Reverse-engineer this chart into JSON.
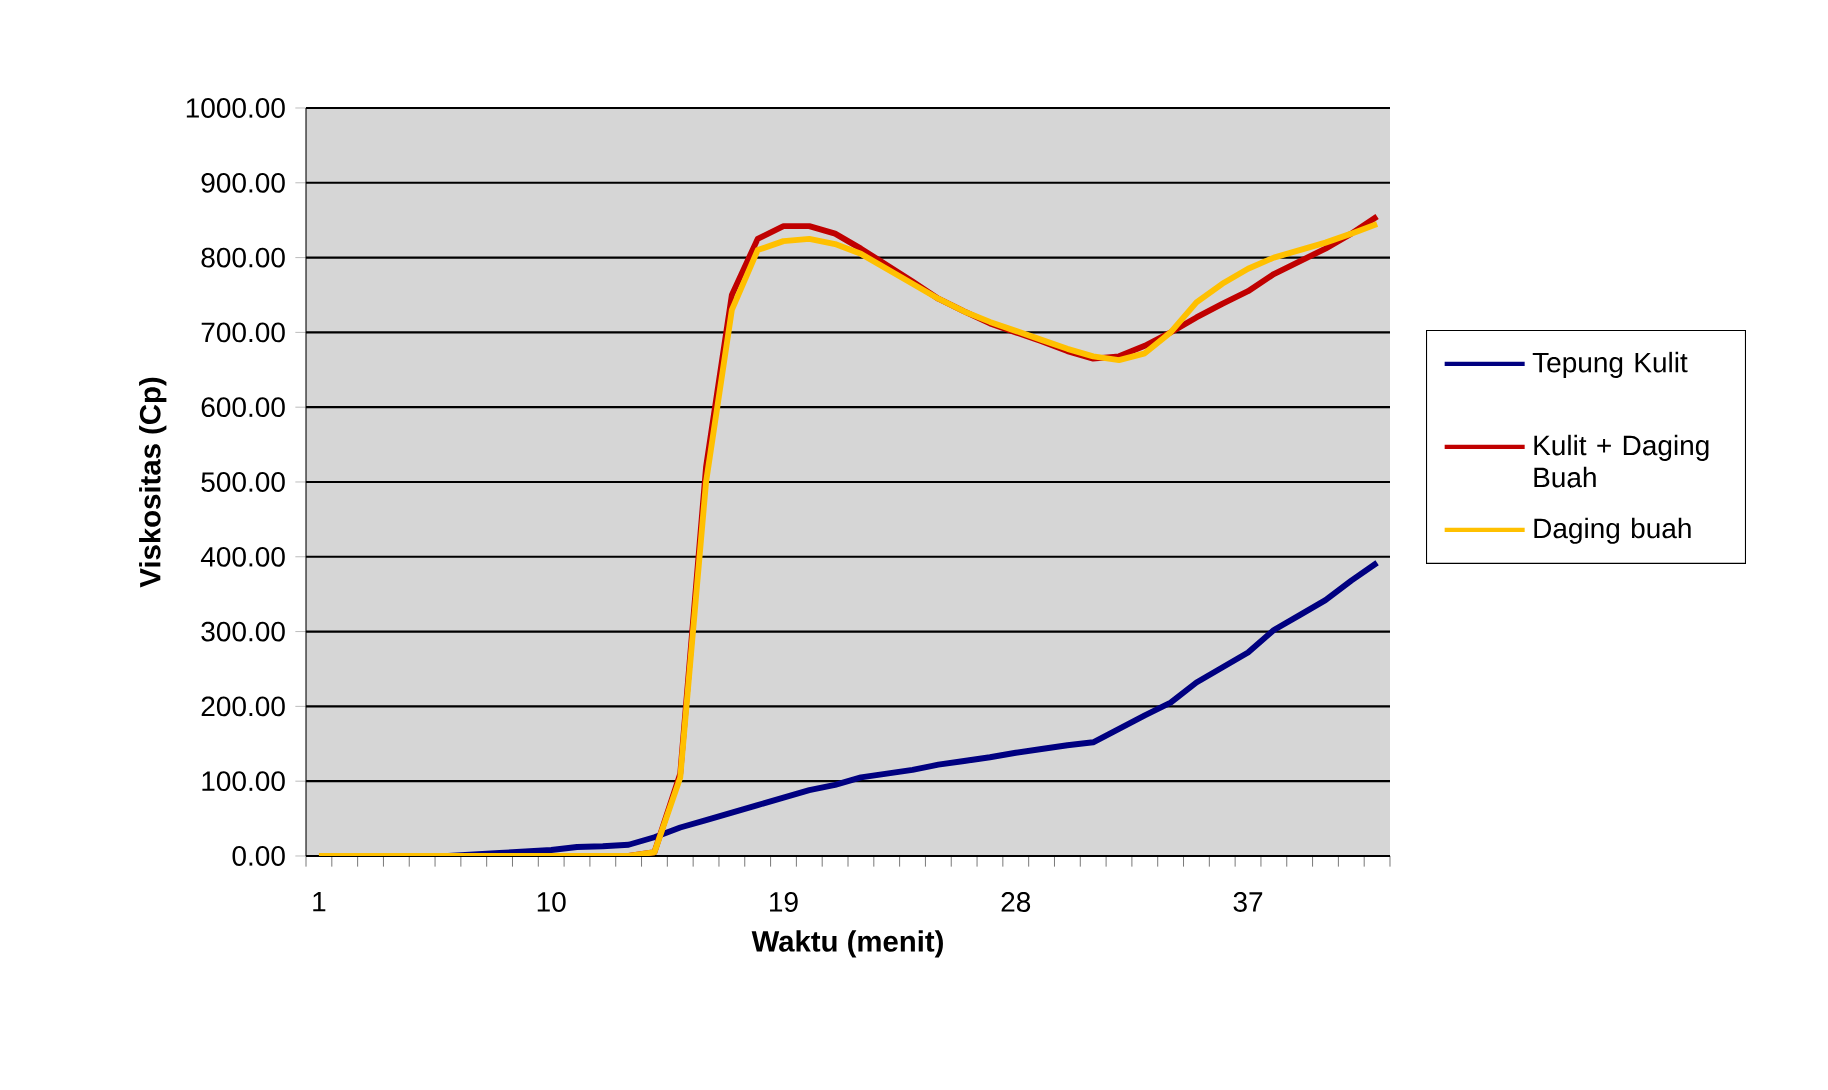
{
  "chart_data": {
    "type": "line",
    "xlabel": "Waktu (menit)",
    "ylabel": "Viskositas (Cp)",
    "categories": [
      "1",
      null,
      null,
      null,
      null,
      null,
      null,
      null,
      null,
      "10",
      null,
      null,
      null,
      null,
      null,
      null,
      null,
      null,
      "19",
      null,
      null,
      null,
      null,
      null,
      null,
      null,
      null,
      "28",
      null,
      null,
      null,
      null,
      null,
      null,
      null,
      null,
      "37",
      null,
      null,
      null,
      null,
      null
    ],
    "series": [
      {
        "name": "Tepung Kulit",
        "color": "#000080",
        "values": [
          null,
          null,
          null,
          null,
          0,
          0,
          2,
          4,
          6,
          8,
          12,
          13,
          15,
          25,
          38,
          48,
          58,
          68,
          78,
          88,
          95,
          105,
          110,
          115,
          122,
          127,
          132,
          138,
          143,
          148,
          152,
          170,
          188,
          205,
          232,
          252,
          272,
          302,
          322,
          342,
          368,
          392
        ]
      },
      {
        "name": "Kulit + Daging Buah",
        "color": "#c00000",
        "values": [
          null,
          null,
          null,
          null,
          null,
          null,
          null,
          null,
          null,
          null,
          null,
          null,
          0,
          5,
          110,
          520,
          750,
          825,
          842,
          842,
          832,
          812,
          790,
          768,
          745,
          728,
          712,
          700,
          688,
          675,
          665,
          668,
          682,
          700,
          720,
          738,
          755,
          778,
          795,
          812,
          832,
          855
        ]
      },
      {
        "name": "Daging buah",
        "color": "#ffc000",
        "values": [
          0,
          0,
          0,
          0,
          0,
          0,
          0,
          0,
          0,
          0,
          0,
          0,
          0,
          5,
          105,
          500,
          730,
          810,
          822,
          825,
          818,
          805,
          785,
          765,
          745,
          728,
          714,
          702,
          690,
          678,
          668,
          663,
          672,
          700,
          740,
          765,
          785,
          800,
          810,
          820,
          832,
          845
        ]
      }
    ],
    "ylim": [
      0,
      1000
    ],
    "yticks": [
      {
        "value": 0,
        "label": "0.00"
      },
      {
        "value": 100,
        "label": "100.00"
      },
      {
        "value": 200,
        "label": "200.00"
      },
      {
        "value": 300,
        "label": "300.00"
      },
      {
        "value": 400,
        "label": "400.00"
      },
      {
        "value": 500,
        "label": "500.00"
      },
      {
        "value": 600,
        "label": "600.00"
      },
      {
        "value": 700,
        "label": "700.00"
      },
      {
        "value": 800,
        "label": "800.00"
      },
      {
        "value": 900,
        "label": "900.00"
      },
      {
        "value": 1000,
        "label": "1000.00"
      }
    ],
    "grid": "y",
    "legend": "right",
    "marker": "none",
    "line_style": "solid"
  }
}
